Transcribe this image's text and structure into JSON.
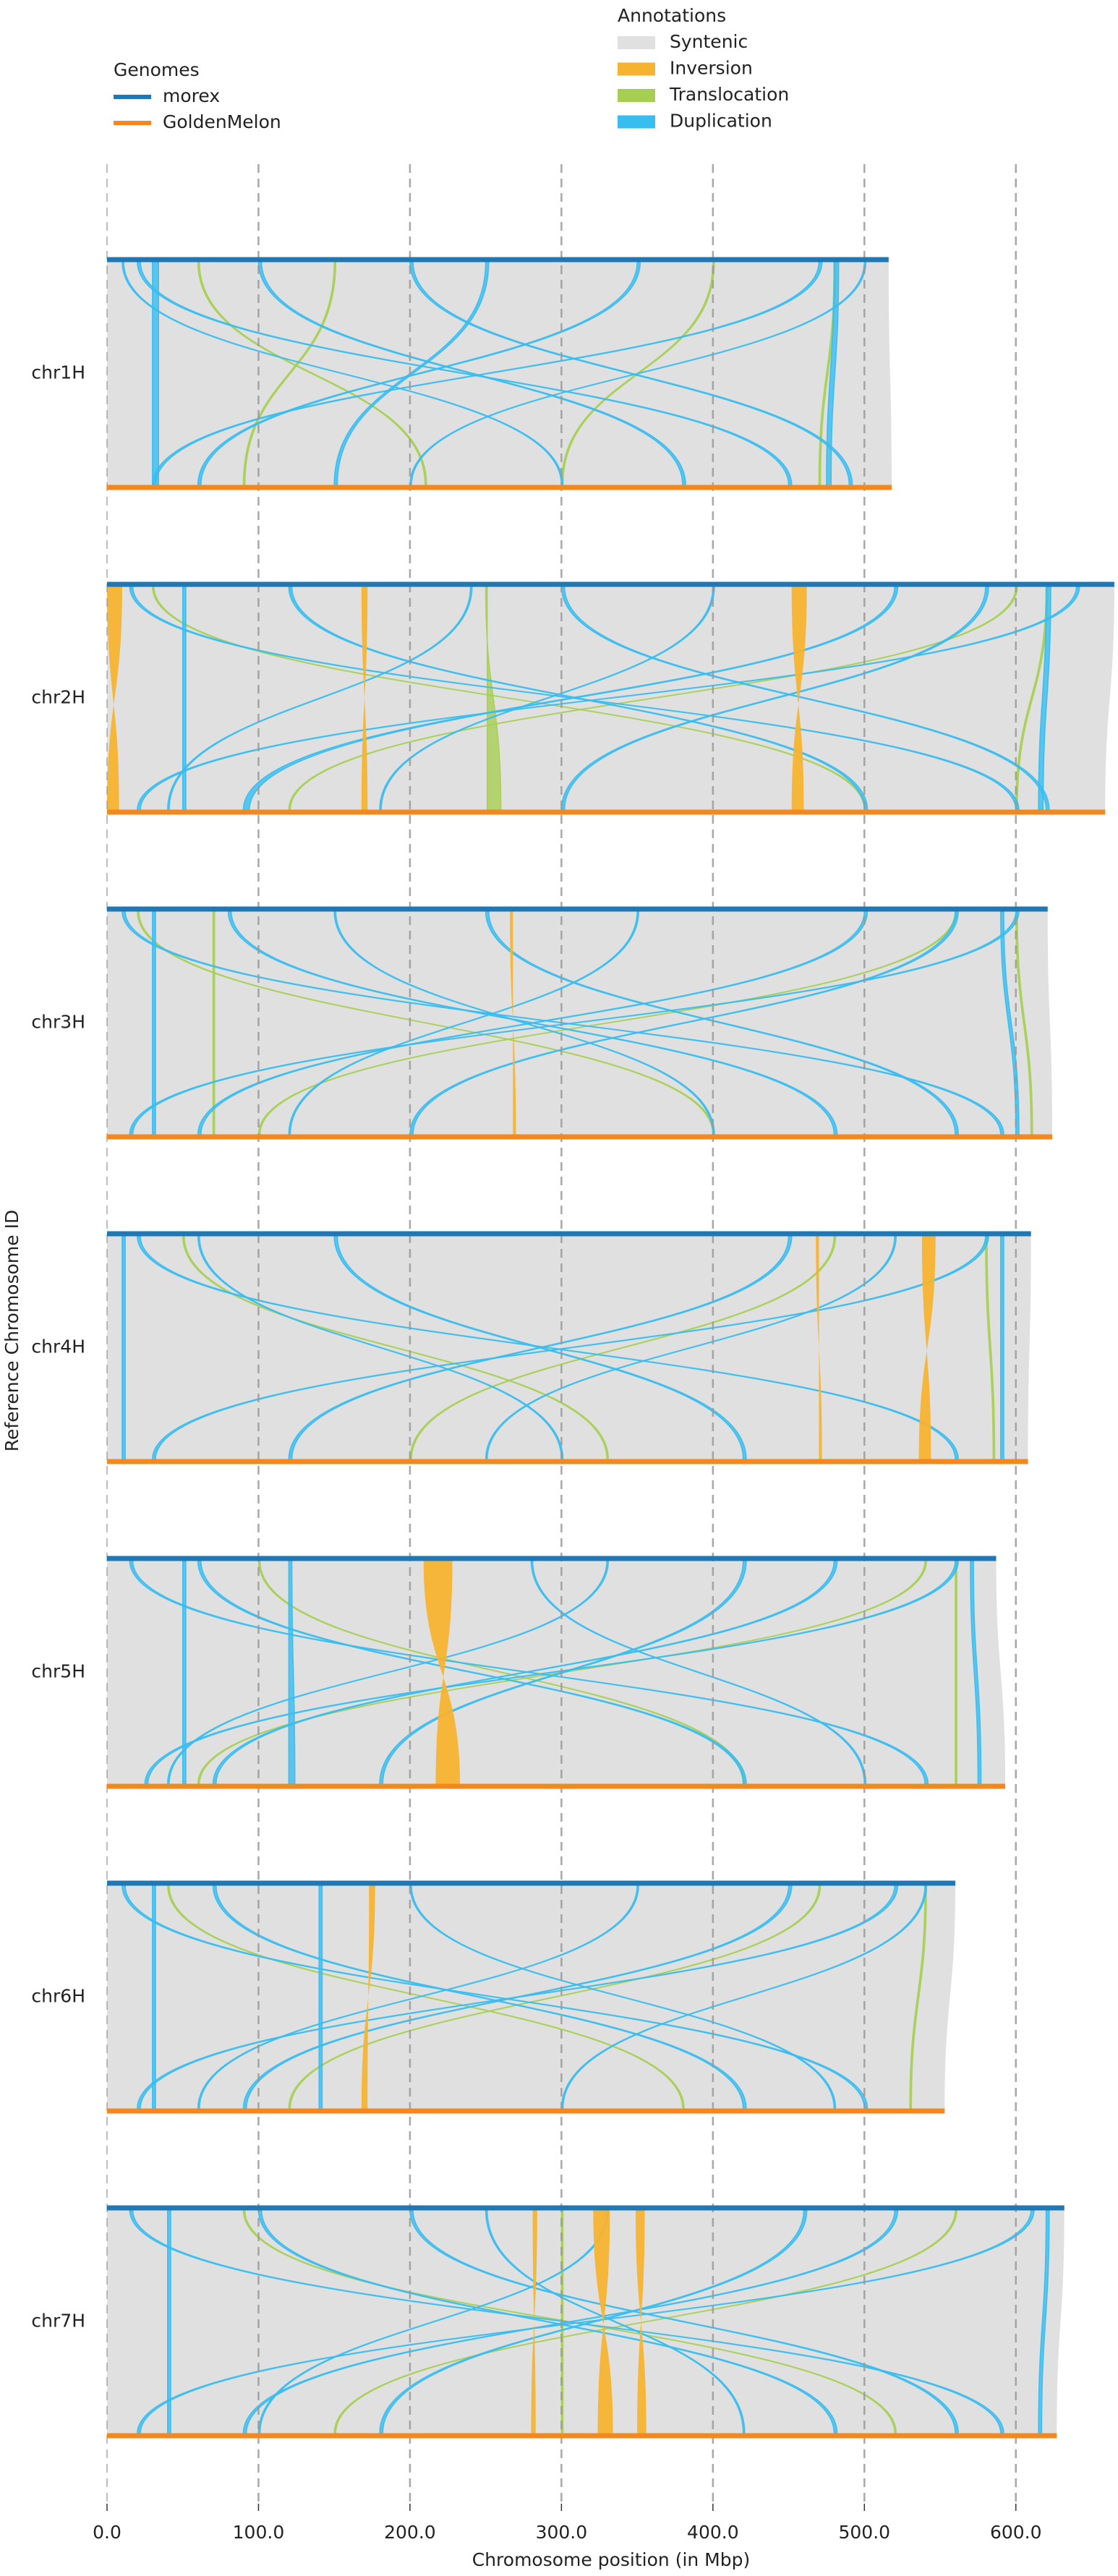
{
  "chart_data": {
    "type": "synteny",
    "xlabel": "Chromosome position (in Mbp)",
    "ylabel": "Reference Chromosome ID",
    "xlim": [
      0,
      666
    ],
    "xticks": [
      {
        "value": 0,
        "label": "0.0"
      },
      {
        "value": 100,
        "label": "100.0"
      },
      {
        "value": 200,
        "label": "200.0"
      },
      {
        "value": 300,
        "label": "300.0"
      },
      {
        "value": 400,
        "label": "400.0"
      },
      {
        "value": 500,
        "label": "500.0"
      },
      {
        "value": 600,
        "label": "600.0"
      }
    ],
    "grid": true,
    "chromosomes": [
      "chr1H",
      "chr2H",
      "chr3H",
      "chr4H",
      "chr5H",
      "chr6H",
      "chr7H"
    ],
    "legend_title": "Genomes",
    "series": [
      {
        "name": "morex",
        "color": "#1f77b4",
        "values": [
          516,
          665,
          621,
          610,
          587,
          560,
          632
        ]
      },
      {
        "name": "GoldenMelon",
        "color": "#f5871f",
        "values": [
          518,
          659,
          624,
          608,
          593,
          553,
          627
        ]
      }
    ],
    "annotations_title": "Annotations",
    "annotations": [
      {
        "name": "Syntenic",
        "color": "#e0e0e0",
        "regions": [
          [
            [
              0,
              516,
              0,
              518
            ]
          ],
          [
            [
              0,
              665,
              0,
              659
            ]
          ],
          [
            [
              0,
              621,
              0,
              624
            ]
          ],
          [
            [
              0,
              610,
              0,
              608
            ]
          ],
          [
            [
              0,
              587,
              0,
              593
            ]
          ],
          [
            [
              0,
              560,
              0,
              553
            ]
          ],
          [
            [
              0,
              632,
              0,
              627
            ]
          ]
        ]
      },
      {
        "name": "Inversion",
        "color": "#f6b330",
        "regions": [
          [],
          [
            [
              0,
              10,
              0,
              8
            ],
            [
              168,
              172,
              168,
              172
            ],
            [
              452,
              462,
              452,
              460
            ]
          ],
          [
            [
              266,
              268,
              268,
              270
            ]
          ],
          [
            [
              468,
              470,
              470,
              472
            ],
            [
              538,
              547,
              536,
              544
            ]
          ],
          [
            [
              209,
              228,
              217,
              233
            ]
          ],
          [
            [
              173,
              177,
              168,
              172
            ]
          ],
          [
            [
              281,
              284,
              280,
              283
            ],
            [
              321,
              332,
              324,
              334
            ],
            [
              349,
              355,
              350,
              356
            ]
          ]
        ]
      },
      {
        "name": "Translocation",
        "color": "#a6cf52",
        "regions": [
          [
            [
              60,
              61,
              210,
              211
            ],
            [
              400,
              401,
              300,
              301
            ],
            [
              480,
              481,
              470,
              471
            ],
            [
              150,
              151,
              90,
              91
            ]
          ],
          [
            [
              30,
              31,
              500,
              501
            ],
            [
              600,
              601,
              120,
              121
            ],
            [
              250,
              251,
              260,
              251
            ],
            [
              620,
              621,
              600,
              601
            ]
          ],
          [
            [
              20,
              21,
              400,
              401
            ],
            [
              560,
              561,
              100,
              101
            ],
            [
              70,
              71,
              70,
              71
            ],
            [
              600,
              601,
              610,
              611
            ]
          ],
          [
            [
              480,
              481,
              200,
              201
            ],
            [
              50,
              51,
              330,
              331
            ],
            [
              580,
              581,
              585,
              586
            ]
          ],
          [
            [
              100,
              101,
              420,
              421
            ],
            [
              540,
              541,
              60,
              61
            ],
            [
              560,
              561,
              560,
              561
            ]
          ],
          [
            [
              40,
              41,
              380,
              381
            ],
            [
              470,
              471,
              120,
              121
            ],
            [
              540,
              541,
              530,
              531
            ]
          ],
          [
            [
              90,
              91,
              520,
              521
            ],
            [
              560,
              561,
              150,
              151
            ],
            [
              300,
              301,
              300,
              301
            ]
          ]
        ]
      },
      {
        "name": "Duplication",
        "color": "#37bdf0",
        "regions": [
          [
            [
              20,
              22,
              450,
              452
            ],
            [
              470,
              472,
              30,
              32
            ],
            [
              100,
              102,
              380,
              382
            ],
            [
              350,
              352,
              60,
              62
            ],
            [
              200,
              202,
              490,
              492
            ],
            [
              30,
              34,
              30,
              34
            ],
            [
              480,
              483,
              475,
              478
            ],
            [
              250,
              252,
              150,
              152
            ],
            [
              10,
              11,
              300,
              301
            ],
            [
              500,
              501,
              200,
              201
            ]
          ],
          [
            [
              15,
              17,
              600,
              602
            ],
            [
              640,
              642,
              20,
              22
            ],
            [
              120,
              122,
              500,
              502
            ],
            [
              520,
              522,
              90,
              94
            ],
            [
              300,
              302,
              620,
              622
            ],
            [
              580,
              582,
              300,
              302
            ],
            [
              50,
              52,
              50,
              52
            ],
            [
              620,
              623,
              615,
              618
            ],
            [
              240,
              241,
              40,
              41
            ],
            [
              400,
              401,
              180,
              181
            ]
          ],
          [
            [
              10,
              12,
              590,
              592
            ],
            [
              600,
              602,
              15,
              17
            ],
            [
              80,
              82,
              480,
              482
            ],
            [
              500,
              502,
              60,
              62
            ],
            [
              250,
              252,
              560,
              562
            ],
            [
              560,
              562,
              200,
              202
            ],
            [
              30,
              32,
              30,
              32
            ],
            [
              590,
              592,
              600,
              602
            ],
            [
              350,
              351,
              120,
              121
            ],
            [
              150,
              151,
              400,
              401
            ]
          ],
          [
            [
              20,
              22,
              560,
              562
            ],
            [
              580,
              582,
              30,
              32
            ],
            [
              150,
              152,
              420,
              422
            ],
            [
              450,
              452,
              120,
              122
            ],
            [
              60,
              61,
              300,
              301
            ],
            [
              520,
              521,
              250,
              251
            ],
            [
              10,
              12,
              10,
              12
            ],
            [
              590,
              592,
              590,
              592
            ]
          ],
          [
            [
              15,
              17,
              540,
              542
            ],
            [
              560,
              562,
              25,
              27
            ],
            [
              60,
              62,
              420,
              422
            ],
            [
              480,
              482,
              70,
              72
            ],
            [
              120,
              122,
              120,
              124
            ],
            [
              420,
              422,
              180,
              182
            ],
            [
              280,
              281,
              500,
              501
            ],
            [
              570,
              572,
              575,
              577
            ],
            [
              50,
              52,
              50,
              52
            ],
            [
              330,
              331,
              40,
              41
            ]
          ],
          [
            [
              10,
              12,
              500,
              502
            ],
            [
              520,
              522,
              20,
              22
            ],
            [
              70,
              72,
              420,
              422
            ],
            [
              450,
              452,
              90,
              92
            ],
            [
              140,
              142,
              140,
              142
            ],
            [
              350,
              351,
              60,
              61
            ],
            [
              200,
              201,
              480,
              481
            ],
            [
              30,
              32,
              30,
              32
            ],
            [
              540,
              541,
              300,
              301
            ]
          ],
          [
            [
              15,
              17,
              590,
              592
            ],
            [
              610,
              612,
              20,
              22
            ],
            [
              100,
              102,
              480,
              482
            ],
            [
              520,
              522,
              90,
              92
            ],
            [
              200,
              202,
              560,
              562
            ],
            [
              460,
              462,
              180,
              182
            ],
            [
              40,
              42,
              40,
              42
            ],
            [
              620,
              622,
              615,
              617
            ],
            [
              330,
              331,
              100,
              101
            ],
            [
              250,
              251,
              420,
              421
            ]
          ]
        ]
      }
    ]
  }
}
